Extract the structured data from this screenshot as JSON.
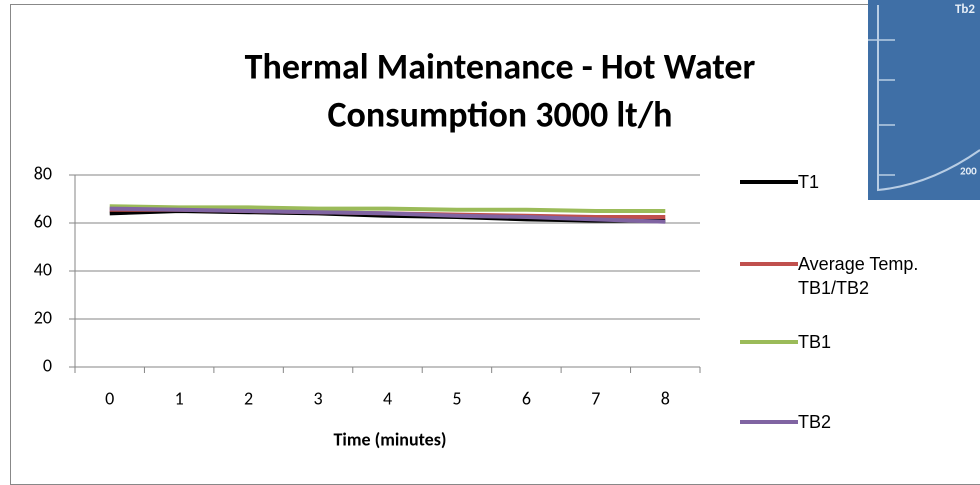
{
  "chart_data": {
    "type": "line",
    "title": [
      "Thermal Maintenance - Hot Water",
      "Consumption 3000 lt/h"
    ],
    "x_label": "Time (minutes)",
    "categories": [
      "0",
      "1",
      "2",
      "3",
      "4",
      "5",
      "6",
      "7",
      "8"
    ],
    "series": [
      {
        "name": "T1",
        "color": "#000000",
        "values": [
          64,
          65,
          64.5,
          64,
          63,
          62.5,
          61.5,
          61,
          61
        ]
      },
      {
        "name": "Average Temp. TB1/TB2",
        "color": "#c0504d",
        "values": [
          65.5,
          65.5,
          65,
          64.5,
          64,
          63.5,
          63,
          62.5,
          62.5
        ]
      },
      {
        "name": "TB1",
        "color": "#9bbb59",
        "values": [
          67,
          66.5,
          66.5,
          66,
          66,
          65.5,
          65.5,
          65,
          65
        ]
      },
      {
        "name": "TB2",
        "color": "#8064a2",
        "values": [
          66,
          65.5,
          65,
          64.5,
          64,
          63,
          62.5,
          61.5,
          60.5
        ]
      }
    ],
    "ylim": [
      0,
      80
    ],
    "yticks": [
      0,
      20,
      40,
      60,
      80
    ],
    "grid": true,
    "legend": "right"
  },
  "inset_image_texts": [
    "Tb2",
    "200"
  ]
}
